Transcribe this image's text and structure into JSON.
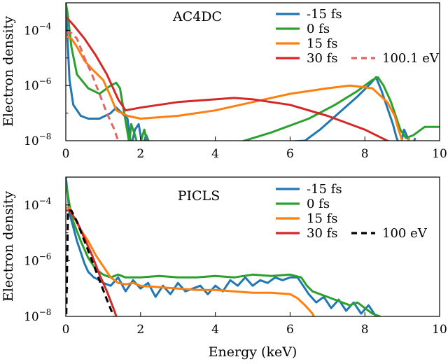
{
  "figure": {
    "xlabel": "Energy (keV)",
    "ylabel": "Electron density"
  },
  "chart_data": [
    {
      "type": "line",
      "title": "AC4DC",
      "xlabel": "",
      "ylabel": "Electron density",
      "xlim": [
        0,
        10
      ],
      "ylim_log10": [
        -8,
        -3
      ],
      "yscale": "log",
      "xticks": [
        {
          "v": 0,
          "label": "0"
        },
        {
          "v": 2,
          "label": "2"
        },
        {
          "v": 4,
          "label": "4"
        },
        {
          "v": 6,
          "label": "6"
        },
        {
          "v": 8,
          "label": "8"
        },
        {
          "v": 10,
          "label": "10"
        }
      ],
      "yticks": [
        {
          "e": -8,
          "label": "-8"
        },
        {
          "e": -6,
          "label": "-6"
        },
        {
          "e": -4,
          "label": "-4"
        }
      ],
      "legend_position": "top-right",
      "series": [
        {
          "name": "-15 fs",
          "color": "#1f77b4",
          "dash": "solid",
          "x": [
            0.0,
            0.1,
            0.2,
            0.4,
            0.6,
            0.9,
            1.2,
            1.35,
            1.5,
            1.65,
            1.75,
            1.85,
            1.95,
            2.05,
            2.15,
            2.3,
            6.4,
            6.8,
            7.3,
            7.8,
            8.1,
            8.3,
            8.45,
            8.6,
            8.75,
            8.85,
            8.95,
            9.05,
            9.15,
            9.25,
            9.35
          ],
          "y": [
            -3.0,
            -5.8,
            -6.7,
            -7.1,
            -7.2,
            -7.2,
            -7.0,
            -6.8,
            -7.0,
            -7.2,
            -8.2,
            -7.6,
            -7.4,
            -8.2,
            -7.8,
            -8.3,
            -8.0,
            -7.6,
            -7.0,
            -6.4,
            -6.0,
            -5.7,
            -6.2,
            -6.8,
            -7.4,
            -7.9,
            -8.2,
            -7.6,
            -7.9,
            -8.2,
            -7.9
          ]
        },
        {
          "name": "0 fs",
          "color": "#2ca02c",
          "dash": "solid",
          "x": [
            0.0,
            0.05,
            0.15,
            0.3,
            0.6,
            0.9,
            1.2,
            1.35,
            1.45,
            1.55,
            1.7,
            1.75,
            1.85,
            1.95,
            2.1,
            2.2,
            4.3,
            5.5,
            6.5,
            7.2,
            7.8,
            8.2,
            8.35,
            8.5,
            8.7,
            8.85,
            8.95,
            9.1,
            9.3,
            9.6,
            10.0
          ],
          "y": [
            -3.0,
            -3.4,
            -4.6,
            -5.6,
            -6.1,
            -6.3,
            -6.0,
            -5.9,
            -6.1,
            -6.9,
            -8.1,
            -7.4,
            -7.8,
            -8.3,
            -7.6,
            -8.2,
            -8.2,
            -7.7,
            -7.2,
            -6.7,
            -6.2,
            -5.8,
            -5.7,
            -6.0,
            -6.6,
            -7.2,
            -7.6,
            -7.9,
            -7.8,
            -7.5,
            -7.5
          ]
        },
        {
          "name": "15 fs",
          "color": "#ff7f0e",
          "dash": "solid",
          "x": [
            0.0,
            0.15,
            0.3,
            0.5,
            0.7,
            1.0,
            1.2,
            1.35,
            1.5,
            1.65,
            2.0,
            3.0,
            4.0,
            5.0,
            6.0,
            7.0,
            7.6,
            8.2,
            8.6,
            8.8,
            8.9,
            9.05,
            9.2
          ],
          "y": [
            -4.2,
            -4.3,
            -4.6,
            -5.1,
            -5.4,
            -5.8,
            -6.4,
            -6.9,
            -7.0,
            -7.1,
            -7.2,
            -7.1,
            -6.9,
            -6.6,
            -6.3,
            -6.1,
            -6.0,
            -6.1,
            -6.6,
            -7.1,
            -7.6,
            -8.2,
            -7.9
          ]
        },
        {
          "name": "30 fs",
          "color": "#d62728",
          "dash": "solid",
          "x": [
            0.0,
            0.2,
            0.5,
            0.8,
            1.1,
            1.4,
            1.6,
            2.0,
            3.0,
            4.0,
            4.5,
            5.0,
            6.0,
            7.0,
            8.0,
            8.6,
            8.9,
            9.0
          ],
          "y": [
            -3.5,
            -3.8,
            -4.3,
            -4.9,
            -5.6,
            -6.5,
            -6.9,
            -6.8,
            -6.6,
            -6.5,
            -6.45,
            -6.5,
            -6.7,
            -7.1,
            -7.6,
            -8.0,
            -8.2,
            -8.3
          ]
        },
        {
          "name": "100.1 eV",
          "color": "#e06666",
          "dash": "dashed",
          "x": [
            0.0,
            0.15,
            0.3,
            0.5,
            0.7,
            0.9,
            1.1,
            1.3,
            1.45
          ],
          "y": [
            -4.1,
            -4.1,
            -4.3,
            -5.0,
            -5.6,
            -6.3,
            -7.0,
            -7.6,
            -8.2
          ]
        }
      ]
    },
    {
      "type": "line",
      "title": "PICLS",
      "xlabel": "Energy (keV)",
      "ylabel": "Electron density",
      "xlim": [
        0,
        10
      ],
      "ylim_log10": [
        -8,
        -3
      ],
      "yscale": "log",
      "xticks": [
        {
          "v": 0,
          "label": "0"
        },
        {
          "v": 2,
          "label": "2"
        },
        {
          "v": 4,
          "label": "4"
        },
        {
          "v": 6,
          "label": "6"
        },
        {
          "v": 8,
          "label": "8"
        },
        {
          "v": 10,
          "label": "10"
        }
      ],
      "yticks": [
        {
          "e": -8,
          "label": "-8"
        },
        {
          "e": -6,
          "label": "-6"
        },
        {
          "e": -4,
          "label": "-4"
        }
      ],
      "legend_position": "top-right",
      "series": [
        {
          "name": "-15 fs",
          "color": "#1f77b4",
          "dash": "solid",
          "x": [
            0.0,
            0.05,
            0.1,
            0.2,
            0.3,
            0.4,
            0.5,
            0.6,
            0.75,
            0.9,
            1.0,
            1.2,
            1.4,
            1.6,
            1.8,
            2.0,
            2.2,
            2.4,
            2.6,
            2.8,
            3.0,
            3.2,
            3.4,
            3.6,
            3.8,
            4.0,
            4.2,
            4.4,
            4.6,
            4.8,
            5.0,
            5.2,
            5.4,
            5.6,
            5.8,
            6.0,
            6.2,
            6.35,
            6.5,
            6.7,
            6.9,
            7.1,
            7.3,
            7.5,
            7.7,
            7.9,
            8.1,
            8.3,
            8.5
          ],
          "y": [
            -3.0,
            -3.6,
            -4.3,
            -4.8,
            -5.3,
            -5.7,
            -6.1,
            -6.4,
            -6.6,
            -6.7,
            -6.8,
            -6.9,
            -6.6,
            -7.1,
            -6.7,
            -7.0,
            -6.8,
            -7.3,
            -6.9,
            -7.2,
            -6.8,
            -7.1,
            -7.0,
            -6.9,
            -7.2,
            -6.9,
            -7.1,
            -6.7,
            -6.9,
            -6.6,
            -6.9,
            -6.7,
            -6.8,
            -6.6,
            -6.7,
            -6.6,
            -6.6,
            -6.9,
            -7.2,
            -7.5,
            -7.3,
            -7.7,
            -7.4,
            -7.8,
            -7.5,
            -7.9,
            -7.6,
            -8.0,
            -8.2
          ]
        },
        {
          "name": "0 fs",
          "color": "#2ca02c",
          "dash": "solid",
          "x": [
            0.0,
            0.05,
            0.1,
            0.2,
            0.4,
            0.6,
            0.8,
            1.0,
            1.2,
            1.4,
            1.6,
            1.8,
            2.0,
            2.5,
            3.0,
            3.5,
            4.0,
            4.5,
            5.0,
            5.5,
            6.0,
            6.3,
            6.45,
            6.6,
            6.8,
            7.0,
            7.2,
            7.4,
            7.6,
            7.8,
            8.0,
            8.2,
            8.4,
            8.6
          ],
          "y": [
            -3.2,
            -3.6,
            -4.0,
            -4.6,
            -5.3,
            -5.9,
            -6.3,
            -6.5,
            -6.6,
            -6.5,
            -6.6,
            -6.6,
            -6.6,
            -6.55,
            -6.6,
            -6.6,
            -6.55,
            -6.6,
            -6.5,
            -6.55,
            -6.5,
            -6.6,
            -6.9,
            -7.1,
            -7.2,
            -7.3,
            -7.4,
            -7.5,
            -7.6,
            -7.5,
            -7.7,
            -7.9,
            -8.0,
            -8.2
          ]
        },
        {
          "name": "15 fs",
          "color": "#ff7f0e",
          "dash": "solid",
          "x": [
            0.0,
            0.1,
            0.2,
            0.4,
            0.6,
            0.8,
            1.0,
            1.2,
            1.4,
            1.6,
            1.8,
            2.0,
            2.5,
            3.0,
            3.5,
            4.0,
            4.5,
            5.0,
            5.5,
            6.0,
            6.2,
            6.4,
            6.6,
            6.7
          ],
          "y": [
            -4.1,
            -4.1,
            -4.4,
            -4.9,
            -5.3,
            -5.8,
            -6.2,
            -6.6,
            -6.8,
            -6.85,
            -6.8,
            -6.9,
            -6.95,
            -7.0,
            -7.05,
            -7.05,
            -7.1,
            -7.15,
            -7.15,
            -7.2,
            -7.35,
            -7.6,
            -7.9,
            -8.2
          ]
        },
        {
          "name": "30 fs",
          "color": "#d62728",
          "dash": "solid",
          "x": [
            0.0,
            0.1,
            0.3,
            0.5,
            0.7,
            0.9,
            1.1,
            1.3,
            1.4
          ],
          "y": [
            -4.2,
            -4.2,
            -4.6,
            -5.2,
            -5.8,
            -6.5,
            -7.1,
            -7.8,
            -8.2
          ]
        },
        {
          "name": "100 eV",
          "color": "#000000",
          "dash": "dashed",
          "x": [
            0.01,
            0.06,
            0.15,
            0.3,
            0.5,
            0.7,
            0.9,
            1.1,
            1.25,
            1.35
          ],
          "y": [
            -8.3,
            -4.2,
            -4.2,
            -4.6,
            -5.3,
            -6.0,
            -6.7,
            -7.4,
            -7.9,
            -8.3
          ]
        }
      ]
    }
  ]
}
